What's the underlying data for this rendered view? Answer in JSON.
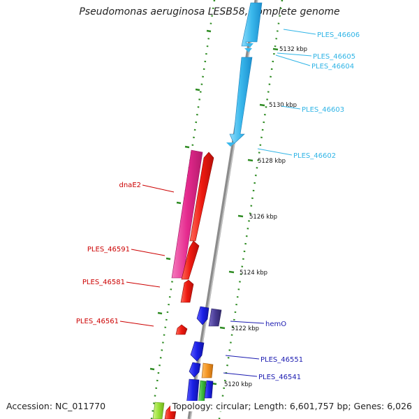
{
  "title": "Pseudomonas aeruginosa LESB58, complete genome",
  "accession_label": "Accession: NC_011770",
  "summary": "Topology: circular; Length: 6,601,757 bp; Genes: 6,026",
  "colors": {
    "backbone": "#9a9a9a",
    "tick": "#2e8b22",
    "cyan": "#3ab8ec",
    "red": "#e8130f",
    "pink": "#e52a8e",
    "blue": "#1b20e6",
    "navy": "#4a3d96",
    "orange": "#f39521",
    "green": "#3dbb3d",
    "lime": "#9be23a"
  },
  "scale_labels": [
    "5132 kbp",
    "5130 kbp",
    "5128 kbp",
    "5126 kbp",
    "5124 kbp",
    "5122 kbp",
    "5120 kbp"
  ],
  "gene_labels": [
    {
      "text": "PLES_46606",
      "color": "#2fb4e6"
    },
    {
      "text": "PLES_46605",
      "color": "#2fb4e6"
    },
    {
      "text": "PLES_46604",
      "color": "#2fb4e6"
    },
    {
      "text": "PLES_46603",
      "color": "#2fb4e6"
    },
    {
      "text": "PLES_46602",
      "color": "#2fb4e6"
    },
    {
      "text": "dnaE2",
      "color": "#cc0000"
    },
    {
      "text": "PLES_46591",
      "color": "#cc0000"
    },
    {
      "text": "PLES_46581",
      "color": "#cc0000"
    },
    {
      "text": "PLES_46561",
      "color": "#cc0000"
    },
    {
      "text": "hemO",
      "color": "#1a1ab0"
    },
    {
      "text": "PLES_46551",
      "color": "#1a1ab0"
    },
    {
      "text": "PLES_46541",
      "color": "#1a1ab0"
    }
  ]
}
